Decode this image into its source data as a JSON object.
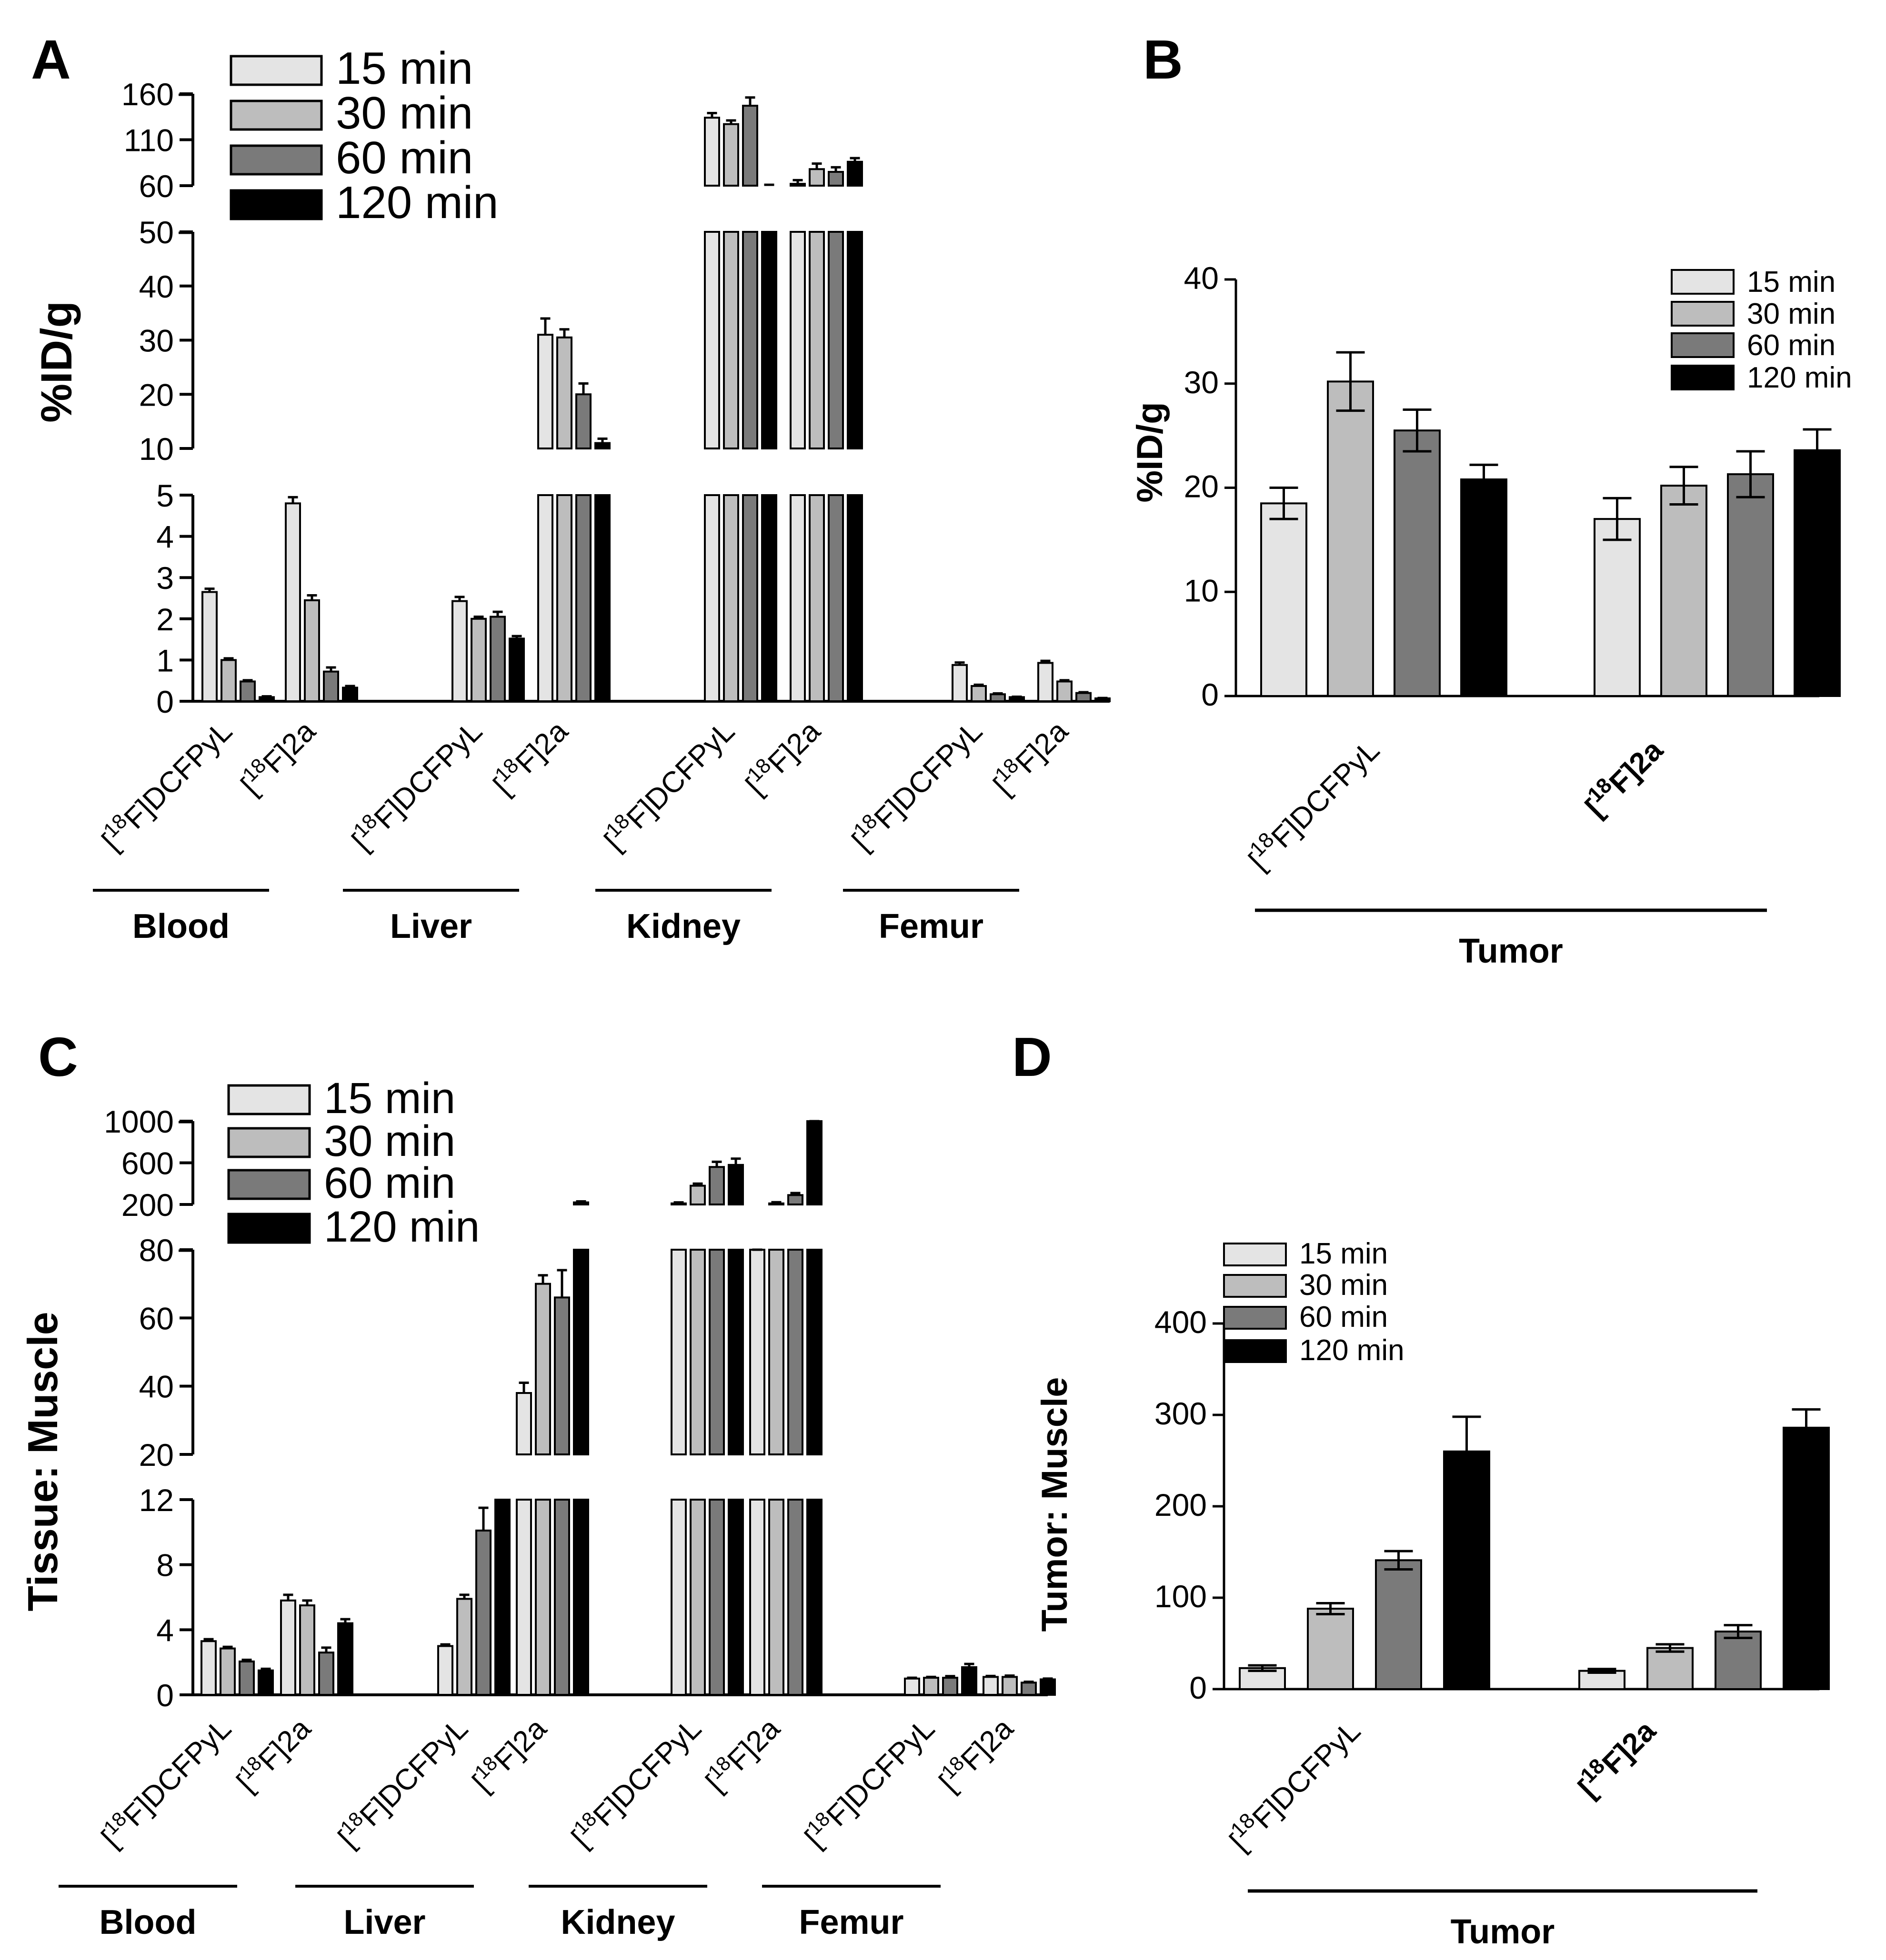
{
  "colors": [
    "#e4e4e4",
    "#bdbdbd",
    "#7a7a7a",
    "#000000"
  ],
  "legend": [
    "15 min",
    "30 min",
    "60 min",
    "120 min"
  ],
  "compounds": [
    "[18F]DCFPyL",
    "[18F]2a"
  ],
  "chart_data": [
    {
      "id": "A",
      "type": "bar",
      "panel_label": "A",
      "ylabel": "%ID/g",
      "axis_breaks": [
        [
          5,
          10
        ],
        [
          50,
          60
        ]
      ],
      "segments": [
        {
          "range": [
            0,
            5
          ],
          "ticks": [
            "0",
            "1",
            "2",
            "3",
            "4",
            "5"
          ]
        },
        {
          "range": [
            10,
            50
          ],
          "ticks": [
            "10",
            "20",
            "30",
            "40",
            "50"
          ]
        },
        {
          "range": [
            60,
            160
          ],
          "ticks": [
            "60",
            "110",
            "160"
          ]
        }
      ],
      "organs": [
        "Blood",
        "Liver",
        "Kidney",
        "Femur"
      ],
      "compound_labels": [
        "[18F]DCFPyL",
        "[18F]2a"
      ],
      "series_names": [
        "15 min",
        "30 min",
        "60 min",
        "120 min"
      ],
      "values": [
        [
          [
            2.65,
            1.0,
            0.48,
            0.1
          ],
          [
            4.8,
            2.45,
            0.72,
            0.33
          ]
        ],
        [
          [
            2.43,
            2.0,
            2.05,
            1.52
          ],
          [
            31,
            30.5,
            20,
            11
          ]
        ],
        [
          [
            134,
            127,
            147,
            60
          ],
          [
            62,
            78,
            75,
            86
          ]
        ],
        [
          [
            0.88,
            0.37,
            0.17,
            0.1
          ],
          [
            0.93,
            0.48,
            0.2,
            0.07
          ]
        ]
      ],
      "errors": [
        [
          [
            0.08,
            0.04,
            0.03,
            0.02
          ],
          [
            0.15,
            0.12,
            0.1,
            0.04
          ]
        ],
        [
          [
            0.1,
            0.05,
            0.12,
            0.06
          ],
          [
            3,
            1.5,
            2,
            0.8
          ]
        ],
        [
          [
            5,
            4,
            9,
            1
          ],
          [
            4,
            6,
            5,
            4
          ]
        ],
        [
          [
            0.06,
            0.03,
            0.02,
            0.01
          ],
          [
            0.05,
            0.03,
            0.02,
            0.01
          ]
        ]
      ]
    },
    {
      "id": "B",
      "type": "bar",
      "panel_label": "B",
      "ylabel": "%ID/g",
      "ylim": [
        0,
        40
      ],
      "ticks": [
        "0",
        "10",
        "20",
        "30",
        "40"
      ],
      "group_label": "Tumor",
      "compound_labels": [
        "[18F]DCFPyL",
        "[18F]2a"
      ],
      "series_names": [
        "15 min",
        "30 min",
        "60 min",
        "120 min"
      ],
      "values": [
        [
          18.5,
          30.2,
          25.5,
          20.8
        ],
        [
          17,
          20.2,
          21.3,
          23.6
        ]
      ],
      "errors": [
        [
          1.5,
          2.8,
          2.0,
          1.4
        ],
        [
          2.0,
          1.8,
          2.2,
          2.0
        ]
      ]
    },
    {
      "id": "C",
      "type": "bar",
      "panel_label": "C",
      "ylabel": "Tissue: Muscle",
      "axis_breaks": [
        [
          12,
          20
        ],
        [
          80,
          200
        ]
      ],
      "segments": [
        {
          "range": [
            0,
            12
          ],
          "ticks": [
            "0",
            "4",
            "8",
            "12"
          ]
        },
        {
          "range": [
            20,
            80
          ],
          "ticks": [
            "20",
            "40",
            "60",
            "80"
          ]
        },
        {
          "range": [
            200,
            1000
          ],
          "ticks": [
            "200",
            "600",
            "1000"
          ]
        }
      ],
      "organs": [
        "Blood",
        "Liver",
        "Kidney",
        "Femur"
      ],
      "compound_labels": [
        "[18F]DCFPyL",
        "[18F]2a"
      ],
      "series_names": [
        "15 min",
        "30 min",
        "60 min",
        "120 min"
      ],
      "values": [
        [
          [
            3.3,
            2.85,
            2.05,
            1.5
          ],
          [
            5.8,
            5.5,
            2.6,
            4.4
          ]
        ],
        [
          [
            3.0,
            5.9,
            10.1,
            19
          ],
          [
            38,
            70,
            66,
            220
          ]
        ],
        [
          [
            210,
            380,
            560,
            580
          ],
          [
            80,
            210,
            290,
            1100
          ]
        ],
        [
          [
            1.0,
            1.05,
            1.05,
            1.7
          ],
          [
            1.1,
            1.1,
            0.75,
            0.95
          ]
        ]
      ],
      "errors": [
        [
          [
            0.12,
            0.1,
            0.1,
            0.1
          ],
          [
            0.35,
            0.3,
            0.3,
            0.25
          ]
        ],
        [
          [
            0.1,
            0.25,
            1.4,
            1
          ],
          [
            3,
            2.5,
            8,
            10
          ]
        ],
        [
          [
            10,
            20,
            50,
            60
          ],
          [
            3,
            12,
            20,
            60
          ]
        ],
        [
          [
            0.05,
            0.05,
            0.1,
            0.2
          ],
          [
            0.06,
            0.08,
            0.05,
            0.05
          ]
        ]
      ]
    },
    {
      "id": "D",
      "type": "bar",
      "panel_label": "D",
      "ylabel": "Tumor: Muscle",
      "ylim": [
        0,
        400
      ],
      "ticks": [
        "0",
        "100",
        "200",
        "300",
        "400"
      ],
      "group_label": "Tumor",
      "compound_labels": [
        "[18F]DCFPyL",
        "[18F]2a"
      ],
      "series_names": [
        "15 min",
        "30 min",
        "60 min",
        "120 min"
      ],
      "values": [
        [
          23,
          88,
          141,
          260
        ],
        [
          20,
          45,
          63,
          286
        ]
      ],
      "errors": [
        [
          3,
          6,
          10,
          38
        ],
        [
          2,
          4,
          7,
          20
        ]
      ]
    }
  ]
}
